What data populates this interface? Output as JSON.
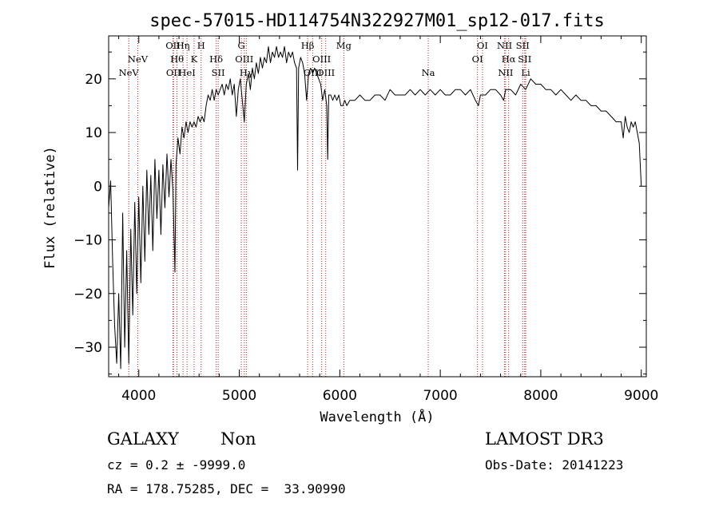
{
  "chart_data": {
    "type": "line",
    "title": "spec-57015-HD114754N322927M01_sp12-017.fits",
    "xlabel": "Wavelength (Å)",
    "ylabel": "Flux (relative)",
    "xlim": [
      3700,
      9050
    ],
    "ylim": [
      -35.5,
      28
    ],
    "xticks": [
      4000,
      5000,
      6000,
      7000,
      8000,
      9000
    ],
    "yticks": [
      -30,
      -20,
      -10,
      0,
      10,
      20
    ],
    "grid": false,
    "line_color": "#000000",
    "marker_color": "#b22222",
    "spectral_lines": [
      {
        "name": "NeV",
        "wavelength": 3900,
        "row": 3
      },
      {
        "name": "NeV",
        "wavelength": 3990,
        "row": 1
      },
      {
        "name": "OII",
        "wavelength": 4340,
        "row": 0
      },
      {
        "name": "OII",
        "wavelength": 4345,
        "row": 3
      },
      {
        "name": "Hθ",
        "wavelength": 4380,
        "row": 1
      },
      {
        "name": "Hη",
        "wavelength": 4440,
        "row": 0
      },
      {
        "name": "HeI",
        "wavelength": 4480,
        "row": 3
      },
      {
        "name": "K",
        "wavelength": 4550,
        "row": 1
      },
      {
        "name": "H",
        "wavelength": 4620,
        "row": 0
      },
      {
        "name": "Hδ",
        "wavelength": 4770,
        "row": 1
      },
      {
        "name": "SII",
        "wavelength": 4790,
        "row": 3
      },
      {
        "name": "G",
        "wavelength": 5020,
        "row": 0
      },
      {
        "name": "OIII",
        "wavelength": 5050,
        "row": 1
      },
      {
        "name": "Hγ",
        "wavelength": 5070,
        "row": 3
      },
      {
        "name": "Hβ",
        "wavelength": 5680,
        "row": 0
      },
      {
        "name": "OIII",
        "wavelength": 5730,
        "row": 3
      },
      {
        "name": "OIII",
        "wavelength": 5820,
        "row": 1
      },
      {
        "name": "OIII",
        "wavelength": 5860,
        "row": 3
      },
      {
        "name": "Mg",
        "wavelength": 6040,
        "row": 0
      },
      {
        "name": "Na",
        "wavelength": 6880,
        "row": 3
      },
      {
        "name": "OI",
        "wavelength": 7370,
        "row": 1
      },
      {
        "name": "OI",
        "wavelength": 7420,
        "row": 0
      },
      {
        "name": "NII",
        "wavelength": 7640,
        "row": 0
      },
      {
        "name": "NII",
        "wavelength": 7650,
        "row": 3
      },
      {
        "name": "Hα",
        "wavelength": 7680,
        "row": 1
      },
      {
        "name": "SII",
        "wavelength": 7820,
        "row": 0
      },
      {
        "name": "SII",
        "wavelength": 7840,
        "row": 1
      },
      {
        "name": "Li",
        "wavelength": 7850,
        "row": 3
      }
    ],
    "series": [
      {
        "points": [
          [
            3700,
            -4
          ],
          [
            3720,
            1
          ],
          [
            3740,
            -14
          ],
          [
            3760,
            -26
          ],
          [
            3780,
            -33
          ],
          [
            3800,
            -20
          ],
          [
            3820,
            -34
          ],
          [
            3840,
            -5
          ],
          [
            3860,
            -30
          ],
          [
            3880,
            -12
          ],
          [
            3900,
            -33
          ],
          [
            3920,
            -8
          ],
          [
            3940,
            -24
          ],
          [
            3960,
            -3
          ],
          [
            3980,
            -20
          ],
          [
            4000,
            -2
          ],
          [
            4020,
            -18
          ],
          [
            4040,
            0
          ],
          [
            4060,
            -14
          ],
          [
            4080,
            3
          ],
          [
            4100,
            -9
          ],
          [
            4120,
            2
          ],
          [
            4140,
            -12
          ],
          [
            4160,
            5
          ],
          [
            4180,
            -6
          ],
          [
            4200,
            3
          ],
          [
            4220,
            -9
          ],
          [
            4240,
            4
          ],
          [
            4260,
            -4
          ],
          [
            4280,
            6
          ],
          [
            4300,
            -2
          ],
          [
            4320,
            5
          ],
          [
            4340,
            -1
          ],
          [
            4360,
            -16
          ],
          [
            4370,
            4
          ],
          [
            4390,
            9
          ],
          [
            4410,
            6
          ],
          [
            4430,
            11
          ],
          [
            4450,
            9
          ],
          [
            4470,
            12
          ],
          [
            4490,
            10
          ],
          [
            4510,
            12
          ],
          [
            4530,
            11
          ],
          [
            4550,
            12
          ],
          [
            4570,
            11
          ],
          [
            4590,
            13
          ],
          [
            4610,
            12
          ],
          [
            4630,
            13
          ],
          [
            4650,
            12
          ],
          [
            4670,
            15
          ],
          [
            4690,
            17
          ],
          [
            4710,
            16
          ],
          [
            4730,
            18
          ],
          [
            4750,
            16
          ],
          [
            4770,
            18
          ],
          [
            4790,
            17
          ],
          [
            4810,
            18
          ],
          [
            4830,
            19
          ],
          [
            4850,
            17
          ],
          [
            4870,
            19
          ],
          [
            4890,
            18
          ],
          [
            4910,
            20
          ],
          [
            4930,
            17
          ],
          [
            4950,
            19
          ],
          [
            4970,
            13
          ],
          [
            4990,
            18
          ],
          [
            5010,
            20
          ],
          [
            5030,
            16
          ],
          [
            5050,
            12
          ],
          [
            5070,
            19
          ],
          [
            5090,
            21
          ],
          [
            5110,
            18
          ],
          [
            5130,
            22
          ],
          [
            5150,
            20
          ],
          [
            5170,
            23
          ],
          [
            5190,
            21
          ],
          [
            5210,
            24
          ],
          [
            5230,
            22
          ],
          [
            5250,
            24
          ],
          [
            5270,
            23
          ],
          [
            5290,
            26
          ],
          [
            5310,
            23
          ],
          [
            5330,
            25
          ],
          [
            5350,
            24
          ],
          [
            5370,
            26
          ],
          [
            5390,
            24
          ],
          [
            5410,
            25
          ],
          [
            5430,
            24
          ],
          [
            5450,
            26
          ],
          [
            5470,
            23
          ],
          [
            5490,
            25
          ],
          [
            5510,
            24
          ],
          [
            5530,
            25
          ],
          [
            5550,
            23
          ],
          [
            5570,
            22
          ],
          [
            5580,
            3
          ],
          [
            5590,
            22
          ],
          [
            5610,
            24
          ],
          [
            5630,
            23
          ],
          [
            5650,
            21
          ],
          [
            5670,
            16
          ],
          [
            5690,
            21
          ],
          [
            5710,
            22
          ],
          [
            5730,
            21
          ],
          [
            5750,
            22
          ],
          [
            5770,
            21
          ],
          [
            5790,
            20
          ],
          [
            5810,
            19
          ],
          [
            5830,
            16
          ],
          [
            5850,
            18
          ],
          [
            5870,
            15
          ],
          [
            5880,
            5
          ],
          [
            5890,
            17
          ],
          [
            5910,
            17
          ],
          [
            5930,
            16
          ],
          [
            5950,
            17
          ],
          [
            5970,
            16
          ],
          [
            5990,
            17
          ],
          [
            6010,
            15
          ],
          [
            6030,
            15
          ],
          [
            6050,
            16
          ],
          [
            6070,
            15
          ],
          [
            6100,
            16
          ],
          [
            6150,
            16
          ],
          [
            6200,
            17
          ],
          [
            6250,
            16
          ],
          [
            6300,
            16
          ],
          [
            6350,
            17
          ],
          [
            6400,
            17
          ],
          [
            6450,
            16
          ],
          [
            6500,
            18
          ],
          [
            6550,
            17
          ],
          [
            6600,
            17
          ],
          [
            6650,
            17
          ],
          [
            6700,
            18
          ],
          [
            6750,
            17
          ],
          [
            6800,
            18
          ],
          [
            6850,
            17
          ],
          [
            6900,
            18
          ],
          [
            6950,
            17
          ],
          [
            7000,
            18
          ],
          [
            7050,
            17
          ],
          [
            7100,
            17
          ],
          [
            7150,
            18
          ],
          [
            7200,
            18
          ],
          [
            7250,
            17
          ],
          [
            7300,
            18
          ],
          [
            7350,
            16
          ],
          [
            7380,
            15
          ],
          [
            7400,
            17
          ],
          [
            7450,
            17
          ],
          [
            7500,
            18
          ],
          [
            7550,
            18
          ],
          [
            7600,
            17
          ],
          [
            7630,
            16
          ],
          [
            7650,
            18
          ],
          [
            7700,
            18
          ],
          [
            7750,
            17
          ],
          [
            7800,
            19
          ],
          [
            7850,
            18
          ],
          [
            7900,
            20
          ],
          [
            7950,
            19
          ],
          [
            8000,
            19
          ],
          [
            8050,
            18
          ],
          [
            8100,
            18
          ],
          [
            8150,
            17
          ],
          [
            8200,
            18
          ],
          [
            8250,
            17
          ],
          [
            8300,
            16
          ],
          [
            8350,
            17
          ],
          [
            8400,
            16
          ],
          [
            8450,
            16
          ],
          [
            8500,
            15
          ],
          [
            8550,
            15
          ],
          [
            8600,
            14
          ],
          [
            8650,
            14
          ],
          [
            8700,
            13
          ],
          [
            8750,
            12
          ],
          [
            8800,
            12
          ],
          [
            8820,
            9
          ],
          [
            8840,
            13
          ],
          [
            8860,
            11
          ],
          [
            8880,
            10
          ],
          [
            8900,
            12
          ],
          [
            8920,
            11
          ],
          [
            8940,
            12
          ],
          [
            8960,
            10
          ],
          [
            8980,
            8
          ],
          [
            9000,
            0
          ]
        ]
      }
    ]
  },
  "info": {
    "object_class": "GALAXY",
    "subclass": "Non",
    "survey": "LAMOST DR3",
    "cz": "cz = 0.2 ± -9999.0",
    "obs_date": "Obs-Date: 20141223",
    "radec": "RA = 178.75285, DEC =  33.90990"
  }
}
